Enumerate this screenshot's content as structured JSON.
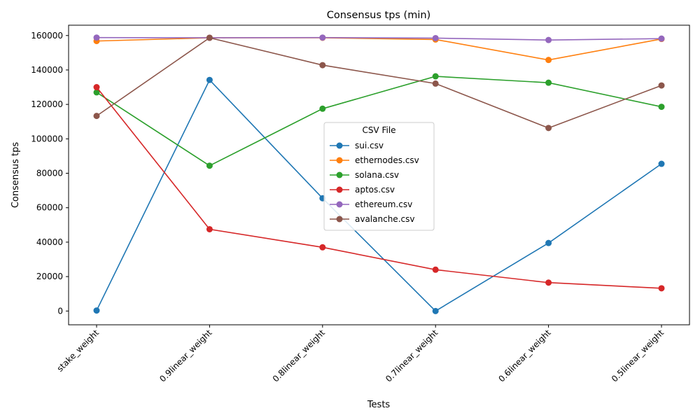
{
  "chart_data": {
    "type": "line",
    "title": "Consensus tps (min)",
    "xlabel": "Tests",
    "ylabel": "Consensus tps",
    "categories": [
      "stake_weight",
      "0.9linear_weight",
      "0.8linear_weight",
      "0.7linear_weight",
      "0.6linear_weight",
      "0.5linear_weight"
    ],
    "ylim": [
      -8000,
      166000
    ],
    "yticks": [
      0,
      20000,
      40000,
      60000,
      80000,
      100000,
      120000,
      140000,
      160000
    ],
    "grid": false,
    "legend": {
      "title": "CSV File",
      "placement": "center"
    },
    "series": [
      {
        "name": "sui.csv",
        "color": "#1f77b4",
        "values": [
          300,
          134200,
          65500,
          0,
          39500,
          85500
        ]
      },
      {
        "name": "ethernodes.csv",
        "color": "#ff7f0e",
        "values": [
          156800,
          158700,
          158700,
          157700,
          145800,
          158000
        ]
      },
      {
        "name": "solana.csv",
        "color": "#2ca02c",
        "values": [
          127000,
          84400,
          117500,
          136300,
          132600,
          118600
        ]
      },
      {
        "name": "aptos.csv",
        "color": "#d62728",
        "values": [
          130000,
          47500,
          37000,
          24000,
          16500,
          13200
        ]
      },
      {
        "name": "ethereum.csv",
        "color": "#9467bd",
        "values": [
          158800,
          158700,
          158800,
          158500,
          157400,
          158200
        ]
      },
      {
        "name": "avalanche.csv",
        "color": "#8c564b",
        "values": [
          113300,
          158700,
          142800,
          132100,
          106300,
          131000
        ]
      }
    ]
  }
}
